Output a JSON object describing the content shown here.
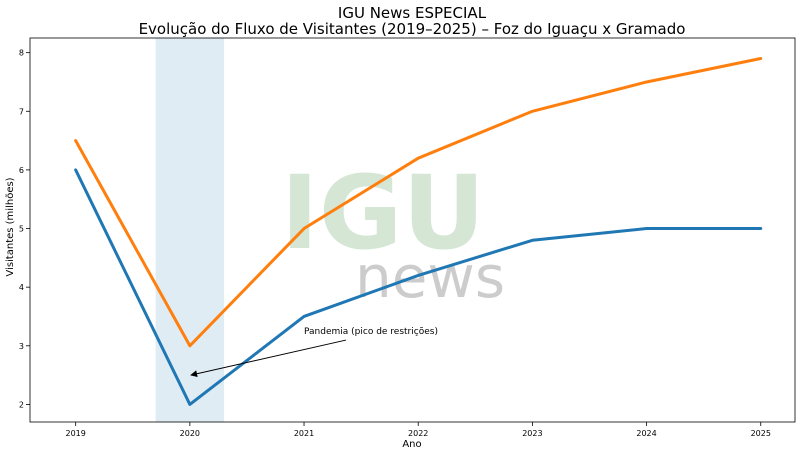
{
  "chart_data": {
    "type": "line",
    "title": "IGU News ESPECIAL",
    "subtitle": "Evolução do Fluxo de Visitantes (2019–2025) – Foz do Iguaçu x Gramado",
    "xlabel": "Ano",
    "ylabel": "Visitantes (milhões)",
    "x": [
      2019,
      2020,
      2021,
      2022,
      2023,
      2024,
      2025
    ],
    "xlim": [
      2018.6,
      2025.3
    ],
    "ylim": [
      1.7,
      8.25
    ],
    "yticks": [
      2,
      3,
      4,
      5,
      6,
      7,
      8
    ],
    "grid": false,
    "series": [
      {
        "color": "#1f77b4",
        "values": [
          6.0,
          2.0,
          3.5,
          4.2,
          4.8,
          5.0,
          5.0
        ]
      },
      {
        "color": "#ff7f0e",
        "values": [
          6.5,
          3.0,
          5.0,
          6.2,
          7.0,
          7.5,
          7.9
        ]
      }
    ],
    "highlight_span": {
      "from": 2019.7,
      "to": 2020.3,
      "color": "#d6e6f0"
    },
    "annotation": {
      "text": "Pandemia (pico de restrições)",
      "point": [
        2020,
        2.5
      ],
      "text_at": [
        2021.0,
        3.2
      ]
    },
    "watermark": {
      "logo": "IGU",
      "sub": "news"
    }
  }
}
